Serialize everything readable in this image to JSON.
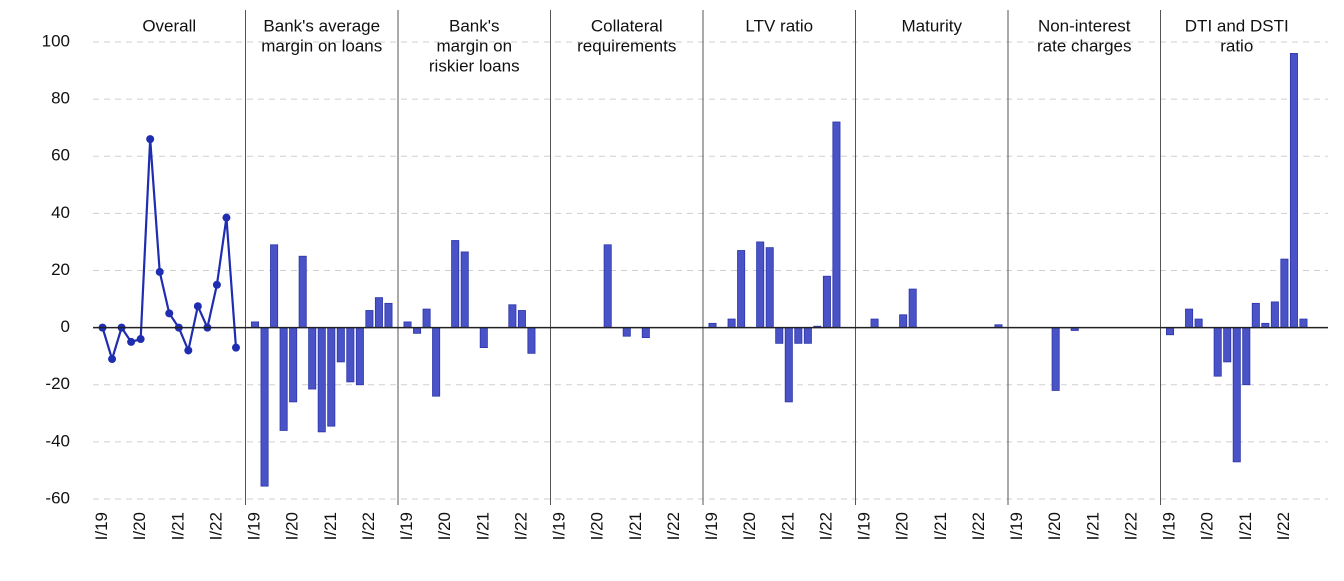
{
  "chart_data": [
    {
      "type": "line",
      "title": [
        "Overall"
      ],
      "color": "#1f2db0",
      "categories": [
        "I/19",
        null,
        null,
        null,
        "I/20",
        null,
        null,
        null,
        "I/21",
        null,
        null,
        null,
        "I/22",
        null,
        null
      ],
      "values": [
        0,
        -11,
        0,
        -5,
        -4,
        66,
        19.5,
        5,
        0,
        -8,
        7.5,
        0,
        15,
        38.5,
        -7
      ],
      "ylim": [
        -60,
        100
      ],
      "yticks": [
        -60,
        -40,
        -20,
        0,
        20,
        40,
        60,
        80,
        100
      ],
      "grid": true
    },
    {
      "type": "bar",
      "title": [
        "Bank's average",
        "margin on loans"
      ],
      "color": "#4a52c8",
      "categories": [
        "I/19",
        null,
        null,
        null,
        "I/20",
        null,
        null,
        null,
        "I/21",
        null,
        null,
        null,
        "I/22",
        null,
        null
      ],
      "values": [
        2,
        -55.5,
        29,
        -36,
        -26,
        25,
        -21.5,
        -36.5,
        -34.5,
        -12,
        -19,
        -20,
        6,
        10.5,
        8.5
      ]
    },
    {
      "type": "bar",
      "title": [
        "Bank's",
        "margin on",
        "riskier loans"
      ],
      "color": "#4a52c8",
      "categories": [
        "I/19",
        null,
        null,
        null,
        "I/20",
        null,
        null,
        null,
        "I/21",
        null,
        null,
        null,
        "I/22",
        null,
        null
      ],
      "values": [
        2,
        -2,
        6.5,
        -24,
        0,
        30.5,
        26.5,
        0,
        -7,
        0,
        0,
        8,
        6,
        -9,
        0
      ]
    },
    {
      "type": "bar",
      "title": [
        "Collateral",
        "requirements"
      ],
      "color": "#4a52c8",
      "categories": [
        "I/19",
        null,
        null,
        null,
        "I/20",
        null,
        null,
        null,
        "I/21",
        null,
        null,
        null,
        "I/22",
        null,
        null
      ],
      "values": [
        0,
        0,
        0,
        0,
        0,
        29,
        0,
        -3,
        0,
        -3.5,
        0,
        0,
        0,
        0,
        0
      ]
    },
    {
      "type": "bar",
      "title": [
        "LTV ratio"
      ],
      "color": "#4a52c8",
      "categories": [
        "I/19",
        null,
        null,
        null,
        "I/20",
        null,
        null,
        null,
        "I/21",
        null,
        null,
        null,
        "I/22",
        null,
        null
      ],
      "values": [
        1.5,
        0,
        3,
        27,
        0,
        30,
        28,
        -5.5,
        -26,
        -5.5,
        -5.5,
        0.5,
        18,
        72,
        0
      ]
    },
    {
      "type": "bar",
      "title": [
        "Maturity"
      ],
      "color": "#4a52c8",
      "categories": [
        "I/19",
        null,
        null,
        null,
        "I/20",
        null,
        null,
        null,
        "I/21",
        null,
        null,
        null,
        "I/22",
        null,
        null
      ],
      "values": [
        0,
        3,
        0,
        0,
        4.5,
        13.5,
        0,
        0,
        0,
        0,
        0,
        0,
        0,
        0,
        1
      ]
    },
    {
      "type": "bar",
      "title": [
        "Non-interest",
        "rate charges"
      ],
      "color": "#4a52c8",
      "categories": [
        "I/19",
        null,
        null,
        null,
        "I/20",
        null,
        null,
        null,
        "I/21",
        null,
        null,
        null,
        "I/22",
        null,
        null
      ],
      "values": [
        0,
        0,
        0,
        0,
        -22,
        0,
        -1,
        0,
        0,
        0,
        0,
        0,
        0,
        0,
        0
      ]
    },
    {
      "type": "bar",
      "title": [
        "DTI and DSTI",
        "ratio"
      ],
      "color": "#4a52c8",
      "categories": [
        "I/19",
        null,
        null,
        null,
        "I/20",
        null,
        null,
        null,
        "I/21",
        null,
        null,
        null,
        "I/22",
        null,
        null
      ],
      "values": [
        -2.5,
        0,
        6.5,
        3,
        0,
        -17,
        -12,
        -47,
        -20,
        8.5,
        1.5,
        9,
        24,
        96,
        3
      ]
    }
  ]
}
